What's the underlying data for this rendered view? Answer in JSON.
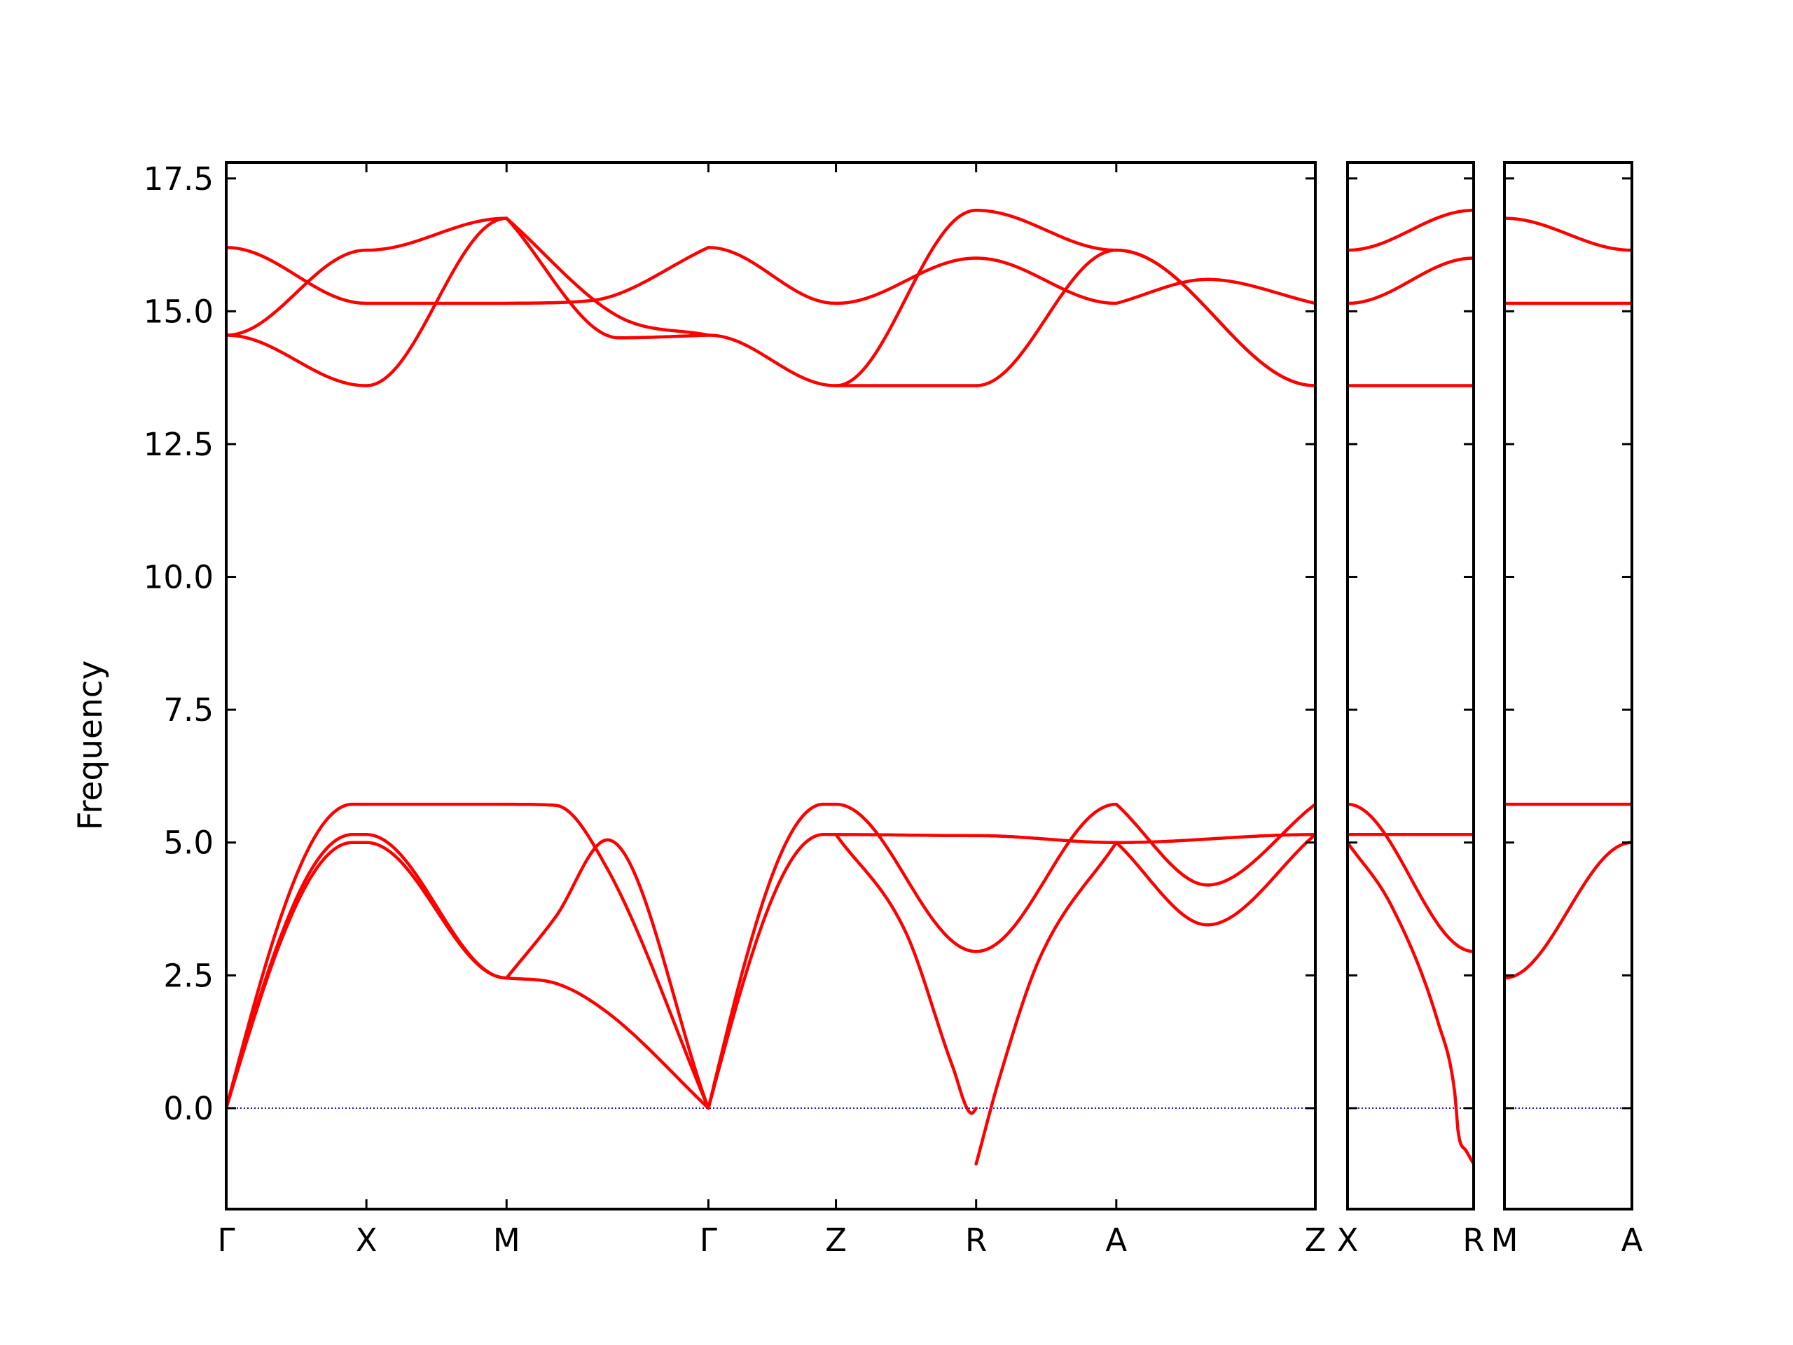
{
  "chart_data": {
    "type": "line",
    "ylabel": "Frequency",
    "ylim": [
      -1.9,
      17.8
    ],
    "y_ticks": [
      "0.0",
      "2.5",
      "5.0",
      "7.5",
      "10.0",
      "12.5",
      "15.0",
      "17.5"
    ],
    "y_tick_values": [
      0,
      2.5,
      5,
      7.5,
      10,
      12.5,
      15,
      17.5
    ],
    "band_color": "#ff0000",
    "zero_line_color": "#0000cc",
    "grid": false,
    "panels": [
      {
        "path": "Γ-X-M-Γ-Z-R-A-Z",
        "high_symmetry_labels": [
          "Γ",
          "X",
          "M",
          "Γ",
          "Z",
          "R",
          "A",
          "Z"
        ],
        "high_symmetry_positions": [
          0,
          1,
          2,
          3.44,
          4.35,
          5.35,
          6.35,
          7.77
        ],
        "bands": [
          {
            "x": [
              0,
              1
            ],
            "y": [
              0,
              5.0
            ],
            "peak": 0.9
          },
          {
            "x": [
              0,
              1
            ],
            "y": [
              0,
              5.15
            ],
            "peak": 0.9
          },
          {
            "x": [
              0,
              1
            ],
            "y": [
              0,
              5.72
            ],
            "peak": 0.9
          },
          {
            "x": [
              1,
              2
            ],
            "y": [
              5.0,
              2.45
            ]
          },
          {
            "x": [
              1,
              2
            ],
            "y": [
              5.15,
              2.45
            ]
          },
          {
            "x": [
              1,
              2
            ],
            "y": [
              5.72,
              5.72
            ]
          },
          {
            "x": [
              2,
              2.35,
              2.72,
              3.44
            ],
            "y": [
              2.45,
              2.35,
              1.8,
              0
            ]
          },
          {
            "x": [
              2,
              2.35,
              2.72,
              3.44
            ],
            "y": [
              2.45,
              3.6,
              5.05,
              0
            ]
          },
          {
            "x": [
              2,
              2.35,
              2.72,
              3.44
            ],
            "y": [
              5.72,
              5.7,
              4.5,
              0
            ]
          },
          {
            "x": [
              3.44,
              4.35
            ],
            "y": [
              0,
              5.15
            ],
            "peak": 0.9
          },
          {
            "x": [
              3.44,
              4.35
            ],
            "y": [
              0,
              5.72
            ],
            "peak": 0.9
          },
          {
            "x": [
              4.35,
              5.35
            ],
            "y": [
              5.15,
              5.13
            ]
          },
          {
            "x": [
              4.35,
              5.35
            ],
            "y": [
              5.72,
              2.95
            ]
          },
          {
            "x": [
              4.35,
              4.85,
              5.18,
              5.32,
              5.35
            ],
            "y": [
              5.15,
              3.3,
              0.8,
              -0.1,
              0
            ]
          },
          {
            "x": [
              5.35,
              6.35
            ],
            "y": [
              5.13,
              5.0
            ]
          },
          {
            "x": [
              5.35,
              6.35
            ],
            "y": [
              2.95,
              5.72
            ]
          },
          {
            "x": [
              5.35,
              5.52,
              5.8,
              6.35
            ],
            "y": [
              -1.05,
              0.6,
              2.8,
              5.0
            ]
          },
          {
            "x": [
              6.35,
              7.0,
              7.77
            ],
            "y": [
              5.0,
              3.45,
              5.15
            ]
          },
          {
            "x": [
              6.35,
              7.0,
              7.77
            ],
            "y": [
              5.72,
              4.2,
              5.72
            ]
          },
          {
            "x": [
              6.35,
              7.77
            ],
            "y": [
              5.0,
              5.15
            ]
          },
          {
            "x": [
              0,
              1
            ],
            "y": [
              14.55,
              13.6
            ]
          },
          {
            "x": [
              0,
              1
            ],
            "y": [
              14.55,
              16.15
            ]
          },
          {
            "x": [
              0,
              1
            ],
            "y": [
              16.2,
              15.15
            ]
          },
          {
            "x": [
              1,
              2
            ],
            "y": [
              13.6,
              16.75
            ]
          },
          {
            "x": [
              1,
              2
            ],
            "y": [
              16.15,
              16.75
            ]
          },
          {
            "x": [
              1,
              2
            ],
            "y": [
              15.15,
              15.15
            ]
          },
          {
            "x": [
              2,
              2.8,
              3.44
            ],
            "y": [
              16.75,
              14.5,
              14.55
            ]
          },
          {
            "x": [
              2,
              2.8,
              3.44
            ],
            "y": [
              16.75,
              14.9,
              14.55
            ]
          },
          {
            "x": [
              2,
              2.6,
              3.44
            ],
            "y": [
              15.15,
              15.2,
              16.2
            ]
          },
          {
            "x": [
              3.44,
              4.35
            ],
            "y": [
              14.55,
              13.6
            ]
          },
          {
            "x": [
              3.44,
              4.35
            ],
            "y": [
              16.2,
              15.15
            ]
          },
          {
            "x": [
              4.35,
              5.35
            ],
            "y": [
              13.6,
              16.9
            ]
          },
          {
            "x": [
              4.35,
              5.35
            ],
            "y": [
              15.15,
              16.0
            ]
          },
          {
            "x": [
              4.35,
              5.35
            ],
            "y": [
              13.6,
              13.6
            ]
          },
          {
            "x": [
              5.35,
              6.35
            ],
            "y": [
              16.9,
              16.15
            ]
          },
          {
            "x": [
              5.35,
              6.35
            ],
            "y": [
              16.0,
              15.15
            ]
          },
          {
            "x": [
              5.35,
              6.35
            ],
            "y": [
              13.6,
              16.15
            ]
          },
          {
            "x": [
              6.35,
              7.77
            ],
            "y": [
              16.15,
              13.6
            ]
          },
          {
            "x": [
              6.35,
              7.77
            ],
            "y": [
              16.15,
              13.6
            ]
          },
          {
            "x": [
              6.35,
              7.0,
              7.77
            ],
            "y": [
              15.15,
              15.6,
              15.15
            ]
          }
        ]
      },
      {
        "path": "X-R",
        "high_symmetry_labels": [
          "X",
          "R"
        ],
        "high_symmetry_positions": [
          0,
          1
        ],
        "bands": [
          {
            "x": [
              0,
              1
            ],
            "y": [
              5.15,
              5.15
            ]
          },
          {
            "x": [
              0,
              1
            ],
            "y": [
              5.72,
              2.95
            ]
          },
          {
            "x": [
              0,
              0.35,
              0.72,
              0.85,
              0.88,
              0.94,
              1
            ],
            "y": [
              5.0,
              3.8,
              1.6,
              0.3,
              -0.5,
              -0.8,
              -1.05
            ]
          },
          {
            "x": [
              0,
              1
            ],
            "y": [
              13.6,
              13.6
            ]
          },
          {
            "x": [
              0,
              1
            ],
            "y": [
              15.15,
              16.0
            ]
          },
          {
            "x": [
              0,
              1
            ],
            "y": [
              16.15,
              16.9
            ]
          }
        ]
      },
      {
        "path": "M-A",
        "high_symmetry_labels": [
          "M",
          "A"
        ],
        "high_symmetry_positions": [
          0,
          1
        ],
        "bands": [
          {
            "x": [
              0,
              1
            ],
            "y": [
              5.72,
              5.72
            ]
          },
          {
            "x": [
              0,
              1
            ],
            "y": [
              2.45,
              5.0
            ]
          },
          {
            "x": [
              0,
              1
            ],
            "y": [
              15.15,
              15.15
            ]
          },
          {
            "x": [
              0,
              1
            ],
            "y": [
              16.75,
              16.15
            ]
          }
        ]
      }
    ]
  }
}
